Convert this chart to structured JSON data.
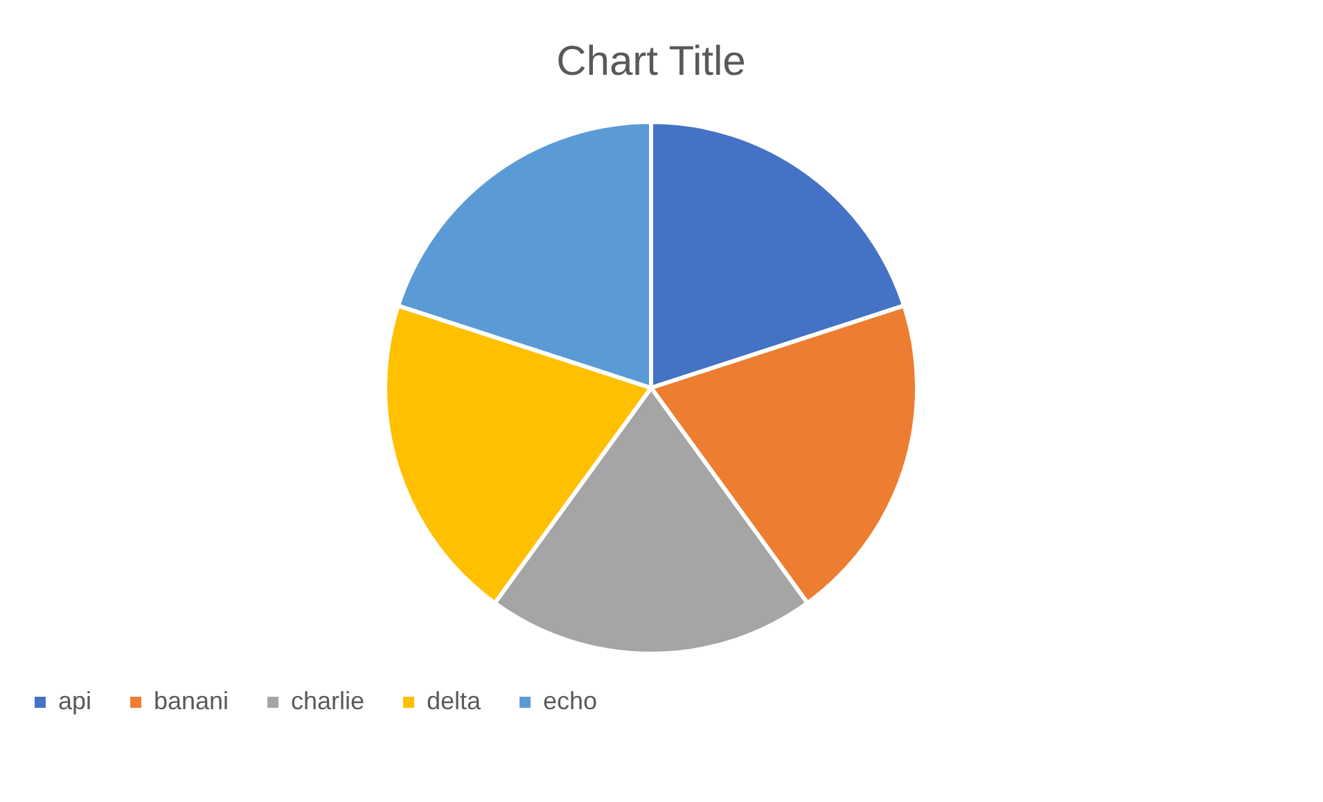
{
  "chart_data": {
    "type": "pie",
    "title": "Chart Title",
    "categories": [
      "api",
      "banani",
      "charlie",
      "delta",
      "echo"
    ],
    "values": [
      20,
      20,
      20,
      20,
      20
    ],
    "colors": [
      "#4472c4",
      "#ed7d31",
      "#a5a5a5",
      "#ffc000",
      "#5b9bd5"
    ],
    "legend": "bottom"
  }
}
